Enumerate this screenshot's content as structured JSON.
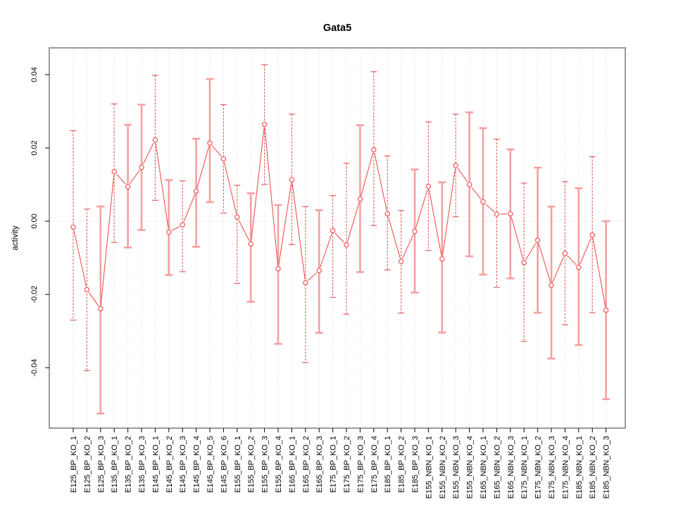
{
  "title": "Gata5",
  "chart_data": {
    "type": "line",
    "title": "Gata5",
    "xlabel": "",
    "ylabel": "activity",
    "legend": "none",
    "grid": "vertical dotted gridlines per category; dotted horizontal line at y=0",
    "marker": "open-circle",
    "error_bars": true,
    "ylim": [
      -0.0565,
      0.0473
    ],
    "yticks": [
      -0.04,
      -0.02,
      0.0,
      0.02,
      0.04
    ],
    "ytick_labels": [
      "-0.04",
      "-0.02",
      "0.00",
      "0.02",
      "0.04"
    ],
    "categories": [
      "E125_BP_KO_1",
      "E125_BP_KO_2",
      "E125_BP_KO_3",
      "E135_BP_KO_1",
      "E135_BP_KO_2",
      "E135_BP_KO_3",
      "E145_BP_KO_1",
      "E145_BP_KO_2",
      "E145_BP_KO_3",
      "E145_BP_KO_4",
      "E145_BP_KO_5",
      "E145_BP_KO_6",
      "E155_BP_KO_1",
      "E155_BP_KO_2",
      "E155_BP_KO_3",
      "E155_BP_KO_4",
      "E165_BP_KO_1",
      "E165_BP_KO_2",
      "E165_BP_KO_3",
      "E175_BP_KO_1",
      "E175_BP_KO_2",
      "E175_BP_KO_3",
      "E175_BP_KO_4",
      "E185_BP_KO_1",
      "E185_BP_KO_2",
      "E185_BP_KO_3",
      "E155_NBN_KO_1",
      "E155_NBN_KO_2",
      "E155_NBN_KO_3",
      "E155_NBN_KO_4",
      "E165_NBN_KO_1",
      "E165_NBN_KO_2",
      "E165_NBN_KO_3",
      "E175_NBN_KO_1",
      "E175_NBN_KO_2",
      "E175_NBN_KO_3",
      "E175_NBN_KO_4",
      "E185_NBN_KO_1",
      "E185_NBN_KO_2",
      "E185_NBN_KO_3"
    ],
    "series": [
      {
        "name": "activity",
        "values": [
          -0.0016,
          -0.0187,
          -0.0239,
          0.0135,
          0.0094,
          0.0147,
          0.0222,
          -0.003,
          -0.001,
          0.0082,
          0.0213,
          0.017,
          0.0011,
          -0.0062,
          0.0264,
          -0.013,
          0.0113,
          -0.0168,
          -0.0135,
          -0.0026,
          -0.0065,
          0.006,
          0.0195,
          0.002,
          -0.011,
          -0.0028,
          0.0095,
          -0.0103,
          0.0152,
          0.01,
          0.0053,
          0.0019,
          0.002,
          -0.0113,
          -0.0052,
          -0.0175,
          -0.0088,
          -0.0126,
          -0.0038,
          -0.0243
        ],
        "upper": [
          0.0247,
          0.0033,
          0.004,
          0.032,
          0.0263,
          0.0318,
          0.0398,
          0.0112,
          0.011,
          0.0225,
          0.0388,
          0.0318,
          0.0098,
          0.0076,
          0.0427,
          0.0044,
          0.0292,
          0.004,
          0.003,
          0.007,
          0.0158,
          0.0262,
          0.0408,
          0.0178,
          0.0029,
          0.0141,
          0.0271,
          0.0106,
          0.0292,
          0.0297,
          0.0254,
          0.0224,
          0.0196,
          0.0104,
          0.0146,
          0.004,
          0.0108,
          0.009,
          0.0176,
          0.0
        ],
        "lower": [
          -0.027,
          -0.0408,
          -0.0525,
          -0.0058,
          -0.0072,
          -0.0024,
          0.0057,
          -0.0147,
          -0.0138,
          -0.007,
          0.0052,
          0.0022,
          -0.017,
          -0.022,
          0.01,
          -0.0335,
          -0.0064,
          -0.0386,
          -0.0305,
          -0.0208,
          -0.0254,
          -0.0139,
          -0.0012,
          -0.0133,
          -0.0251,
          -0.0195,
          -0.008,
          -0.0304,
          0.0012,
          -0.0096,
          -0.0146,
          -0.0181,
          -0.0156,
          -0.0328,
          -0.025,
          -0.0375,
          -0.0283,
          -0.0338,
          -0.025,
          -0.0486
        ],
        "bar_thick": [
          0,
          0,
          1,
          0,
          1,
          1,
          0,
          1,
          0,
          1,
          1,
          0,
          0,
          1,
          0,
          1,
          0,
          0,
          1,
          0,
          0,
          1,
          0,
          0,
          0,
          1,
          0,
          1,
          0,
          1,
          1,
          0,
          1,
          0,
          1,
          1,
          0,
          1,
          0,
          1
        ]
      }
    ],
    "colors": {
      "point_line": "#ef5350",
      "error_bar_thin": "#e25555",
      "error_bar_thick": "#f5a0a0",
      "gridline": "#dcdcdc",
      "zero_line": "#d8d8d8",
      "plot_border": "#9a9a9a",
      "tick": "#000000",
      "background": "#ffffff"
    }
  }
}
